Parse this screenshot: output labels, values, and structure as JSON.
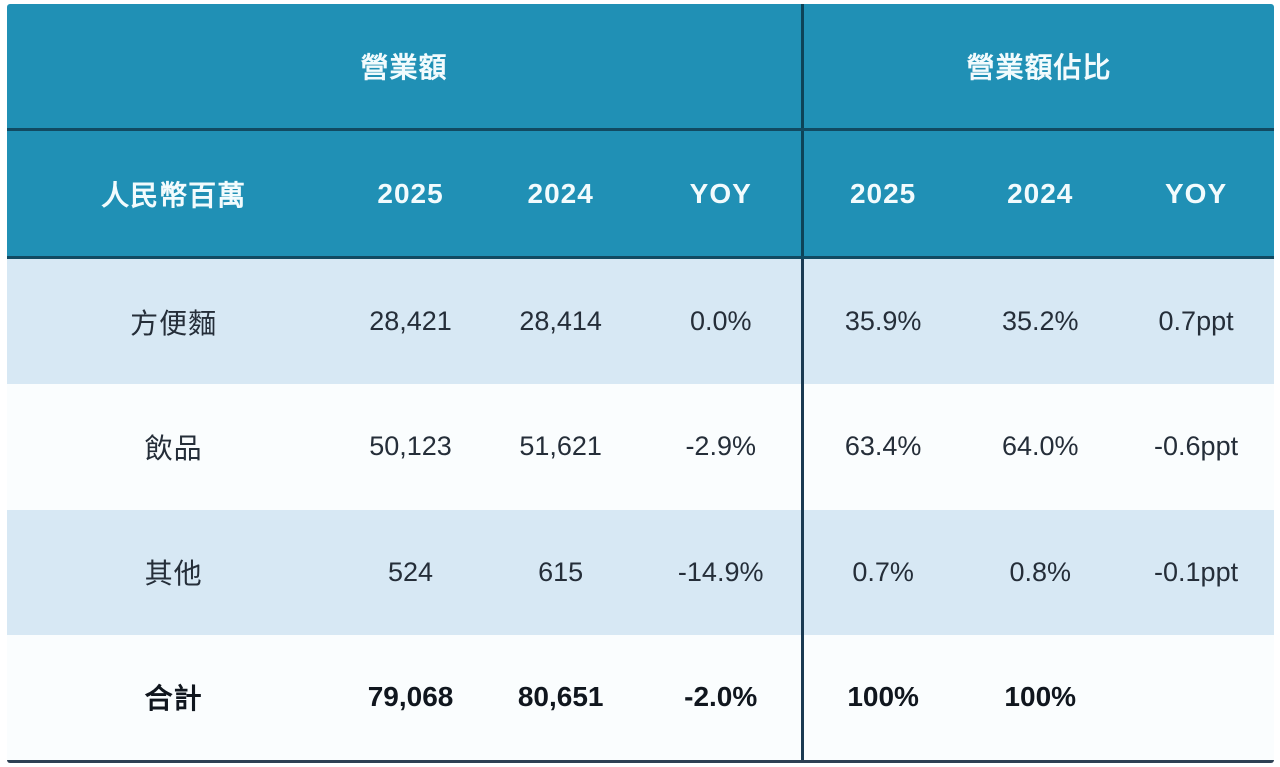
{
  "chart_data": {
    "type": "table",
    "section_headers": [
      "營業額",
      "營業額佔比"
    ],
    "unit_label": "人民幣百萬",
    "columns": [
      "2025",
      "2024",
      "YOY",
      "2025",
      "2024",
      "YOY"
    ],
    "rows": [
      {
        "label": "方便麵",
        "values": [
          "28,421",
          "28,414",
          "0.0%",
          "35.9%",
          "35.2%",
          "0.7ppt"
        ],
        "bold": false
      },
      {
        "label": "飲品",
        "values": [
          "50,123",
          "51,621",
          "-2.9%",
          "63.4%",
          "64.0%",
          "-0.6ppt"
        ],
        "bold": false
      },
      {
        "label": "其他",
        "values": [
          "524",
          "615",
          "-14.9%",
          "0.7%",
          "0.8%",
          "-0.1ppt"
        ],
        "bold": false
      },
      {
        "label": "合計",
        "values": [
          "79,068",
          "80,651",
          "-2.0%",
          "100%",
          "100%",
          ""
        ],
        "bold": true
      }
    ],
    "layout_hints": {
      "left_section_columns": 3,
      "right_section_columns": 3,
      "row_striping": "alternating light blue / white",
      "divider": "dark vertical rule between sections"
    }
  },
  "colors": {
    "header_bg": "#2090b5",
    "header_text": "#f2fbfd",
    "row_alt_bg": "#d7e8f4",
    "row_bg": "#fafdfe",
    "body_text": "#252e39",
    "section_divider": "#1a3a52",
    "header_rule": "#114a62",
    "bottom_rule": "#2e4154"
  }
}
